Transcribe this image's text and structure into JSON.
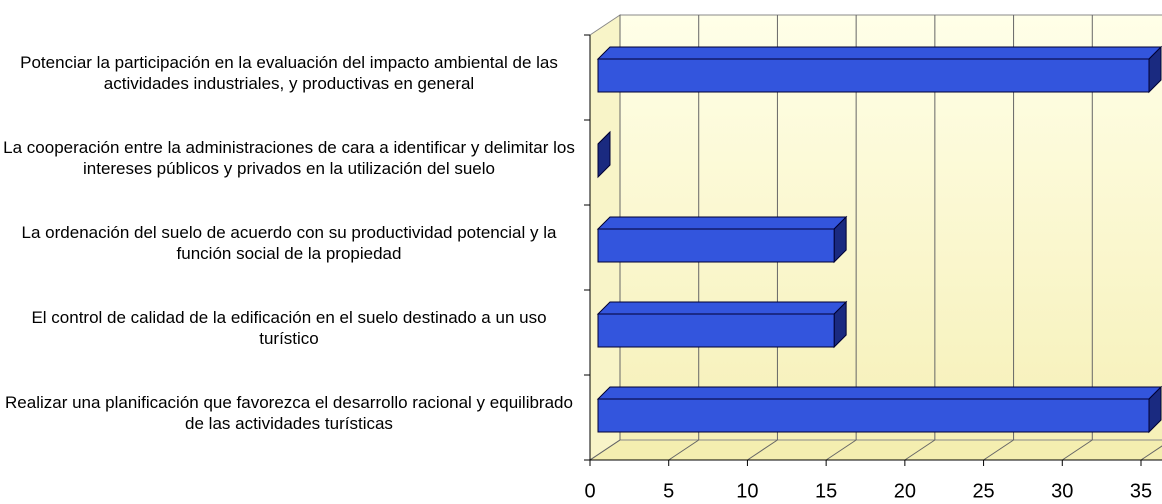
{
  "chart_data": {
    "type": "bar3d",
    "categories": [
      "Potenciar la participación en la evaluación del impacto ambiental de las actividades industriales, y productivas en general",
      "La cooperación entre la administraciones de cara a identificar y delimitar los intereses públicos y privados en la utilización del suelo",
      "La ordenación del suelo de acuerdo con su productividad potencial y la función social de la propiedad",
      "El control de calidad de la edificación en el suelo destinado a un uso turístico",
      "Realizar una planificación que favorezca el desarrollo racional y equilibrado de las actividades turísticas"
    ],
    "values": [
      35,
      0,
      15,
      15,
      35
    ],
    "color": "#3355dd",
    "xlim": [
      0,
      35
    ],
    "xticks": [
      0,
      5,
      10,
      15,
      20,
      25,
      30,
      35
    ],
    "grid": true
  }
}
